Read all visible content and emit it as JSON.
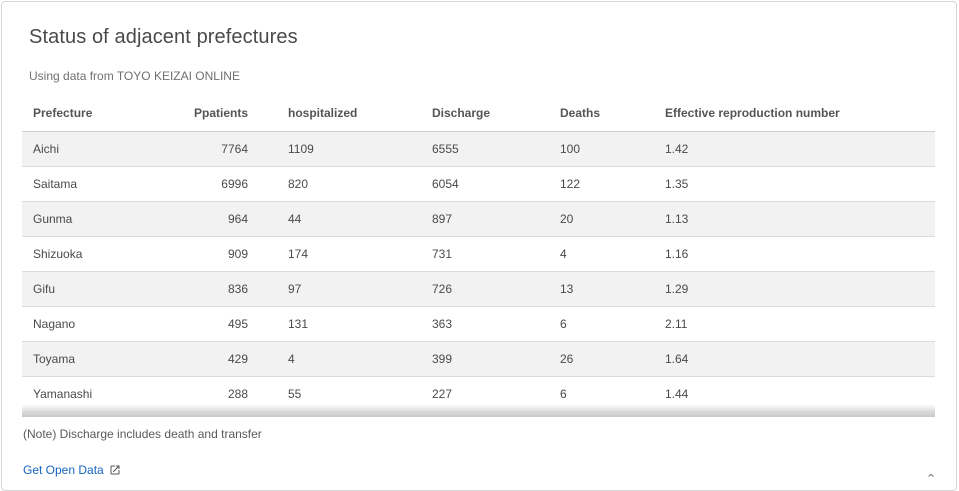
{
  "card": {
    "title": "Status of adjacent prefectures",
    "subtitle": "Using data from TOYO KEIZAI ONLINE",
    "note": "(Note) Discharge includes death and transfer",
    "open_data_label": "Get Open Data",
    "open_data_icon": "external-link-icon"
  },
  "table": {
    "headers": [
      "Prefecture",
      "Ppatients",
      "hospitalized",
      "Discharge",
      "Deaths",
      "Effective reproduction number"
    ],
    "rows": [
      [
        "Aichi",
        "7764",
        "1109",
        "6555",
        "100",
        "1.42"
      ],
      [
        "Saitama",
        "6996",
        "820",
        "6054",
        "122",
        "1.35"
      ],
      [
        "Gunma",
        "964",
        "44",
        "897",
        "20",
        "1.13"
      ],
      [
        "Shizuoka",
        "909",
        "174",
        "731",
        "4",
        "1.16"
      ],
      [
        "Gifu",
        "836",
        "97",
        "726",
        "13",
        "1.29"
      ],
      [
        "Nagano",
        "495",
        "131",
        "363",
        "6",
        "2.11"
      ],
      [
        "Toyama",
        "429",
        "4",
        "399",
        "26",
        "1.64"
      ],
      [
        "Yamanashi",
        "288",
        "55",
        "227",
        "6",
        "1.44"
      ]
    ]
  },
  "colors": {
    "link": "#1565c0",
    "stripe": "#f2f2f2"
  }
}
